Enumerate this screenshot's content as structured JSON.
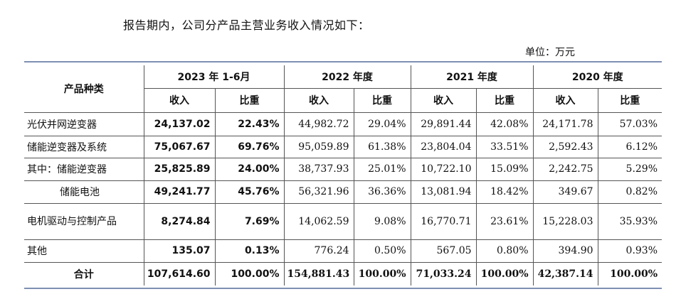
{
  "intro": "报告期内，公司分产品主营业务收入情况如下：",
  "unit": "单位：万元",
  "headers": {
    "category": "产品种类",
    "periods": [
      "2023 年 1-6月",
      "2022 年度",
      "2021 年度",
      "2020 年度"
    ],
    "income": "收入",
    "ratio": "比重"
  },
  "rows": [
    {
      "name": "光伏并网逆变器",
      "v": [
        "24,137.02",
        "22.43%",
        "44,982.72",
        "29.04%",
        "29,891.44",
        "42.08%",
        "24,171.78",
        "57.03%"
      ]
    },
    {
      "name": "储能逆变器及系统",
      "v": [
        "75,067.67",
        "69.76%",
        "95,059.89",
        "61.38%",
        "23,804.04",
        "33.51%",
        "2,592.43",
        "6.12%"
      ]
    },
    {
      "name": "其中：储能逆变器",
      "v": [
        "25,825.89",
        "24.00%",
        "38,737.93",
        "25.01%",
        "10,722.10",
        "15.09%",
        "2,242.75",
        "5.29%"
      ]
    },
    {
      "name": "储能电池",
      "v": [
        "49,241.77",
        "45.76%",
        "56,321.96",
        "36.36%",
        "13,081.94",
        "18.42%",
        "349.67",
        "0.82%"
      ]
    },
    {
      "name": "电机驱动与控制产品",
      "v": [
        "8,274.84",
        "7.69%",
        "14,062.59",
        "9.08%",
        "16,770.71",
        "23.61%",
        "15,228.03",
        "35.93%"
      ]
    },
    {
      "name": "其他",
      "v": [
        "135.07",
        "0.13%",
        "776.24",
        "0.50%",
        "567.05",
        "0.80%",
        "394.90",
        "0.93%"
      ]
    },
    {
      "name": "合计",
      "v": [
        "107,614.60",
        "100.00%",
        "154,881.43",
        "100.00%",
        "71,033.24",
        "100.00%",
        "42,387.14",
        "100.00%"
      ]
    }
  ]
}
